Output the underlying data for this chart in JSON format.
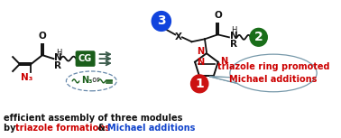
{
  "fig_width": 3.78,
  "fig_height": 1.53,
  "dpi": 100,
  "bg_color": "#ffffff",
  "bottom_text_line1": "efficient assembly of three modules",
  "bottom_text_line2_part1": "by ",
  "bottom_text_line2_part2": "triazole formations",
  "bottom_text_line2_part3": " & ",
  "bottom_text_line2_part4": "Michael additions",
  "color_red": "#cc0000",
  "color_blue": "#1144cc",
  "color_black": "#111111",
  "color_dark_green": "#1a5e1a",
  "color_arrow": "#3a5a4a",
  "color_circle_blue": "#1144dd",
  "color_circle_red": "#cc1111",
  "color_circle_green": "#1a6e1a",
  "bubble_text1": "triazole ring promoted",
  "bubble_text2": "Michael additions",
  "cg_label": "CG",
  "n3_label": "N₃"
}
